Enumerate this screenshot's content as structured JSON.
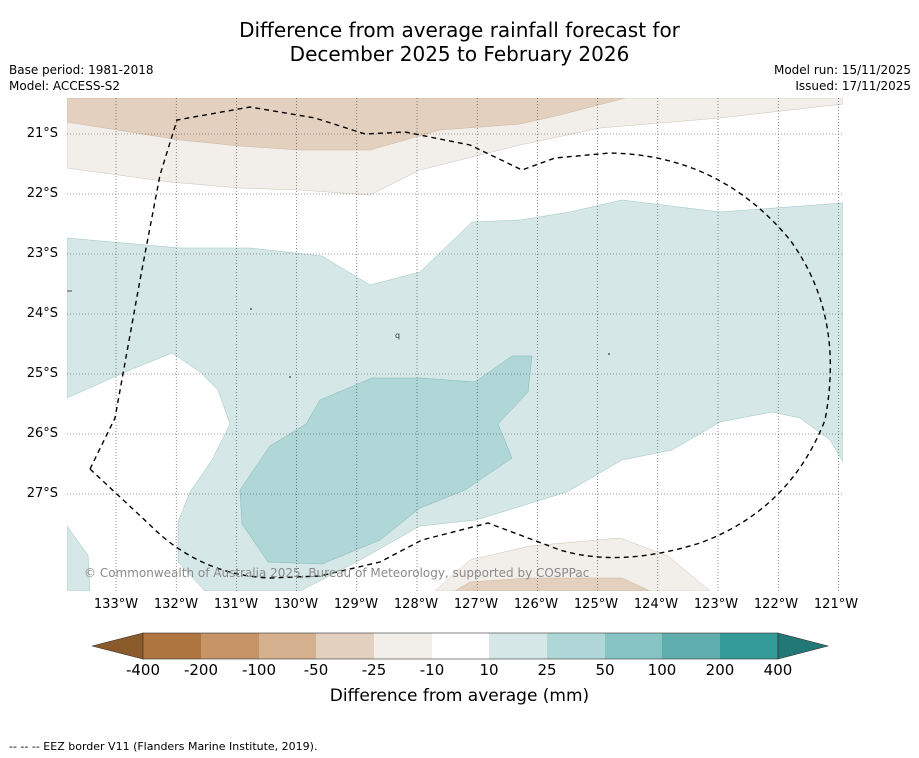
{
  "title": {
    "line1": "Difference from average rainfall forecast for",
    "line2": "December 2025 to February 2026"
  },
  "meta": {
    "base_period": "Base period: 1981-2018",
    "model": "Model: ACCESS-S2",
    "model_run": "Model run: 15/11/2025",
    "issued": "Issued: 17/11/2025"
  },
  "map": {
    "latitude_labels": [
      "21°S",
      "22°S",
      "23°S",
      "24°S",
      "25°S",
      "26°S",
      "27°S"
    ],
    "longitude_labels": [
      "133°W",
      "132°W",
      "131°W",
      "130°W",
      "129°W",
      "128°W",
      "127°W",
      "126°W",
      "125°W",
      "124°W",
      "123°W",
      "122°W",
      "121°W"
    ],
    "copyright": "© Commonwealth of Australia 2025, Bureau of Meteorology, supported by COSPPac",
    "lon_range": [
      -133.8,
      -121.0
    ],
    "lat_range": [
      -28.6,
      -20.4
    ]
  },
  "legend": {
    "title": "Difference from average (mm)",
    "tick_labels": [
      "-400",
      "-200",
      "-100",
      "-50",
      "-25",
      "-10",
      "10",
      "25",
      "50",
      "100",
      "200",
      "400"
    ],
    "colors": {
      "lt_-400": "#8b5a2b",
      "-400_-200": "#ae7540",
      "-200_-100": "#c59467",
      "-100_-50": "#d5b08e",
      "-50_-25": "#e4d0bf",
      "-25_-10": "#f2eeea",
      "-10_10": "#ffffff",
      "10_25": "#d5e8e7",
      "25_50": "#afd7d7",
      "50_100": "#86c3c3",
      "100_200": "#5fadad",
      "200_400": "#339a98",
      "gt_400": "#217877"
    }
  },
  "footnote": "-- -- -- EEZ border V11 (Flanders Marine Institute, 2019)."
}
